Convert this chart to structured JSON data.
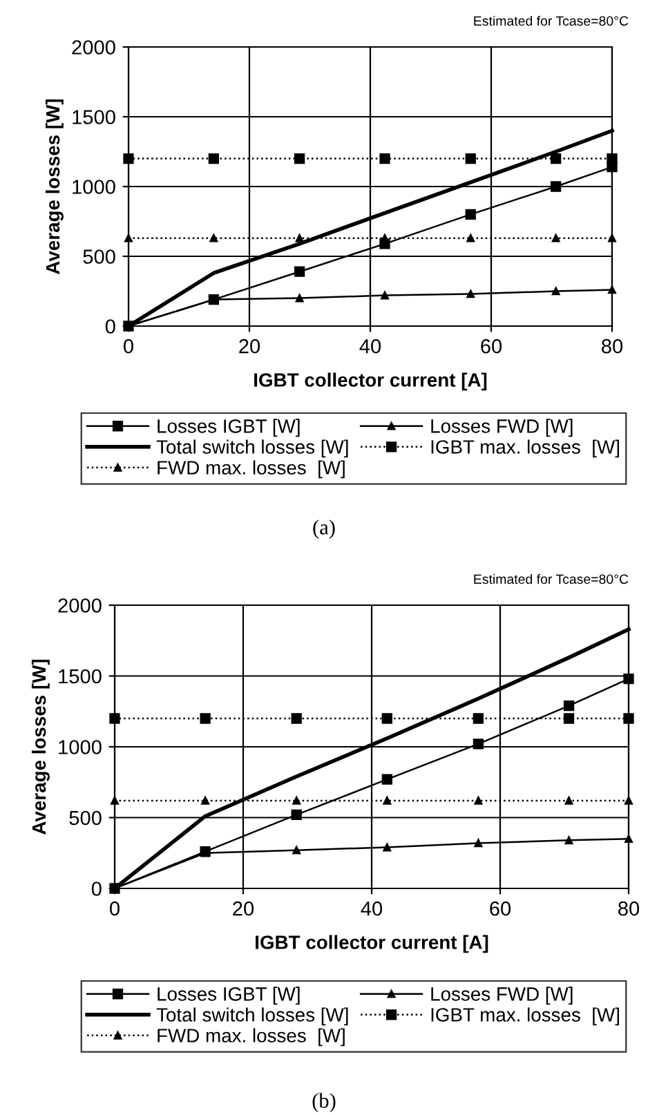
{
  "chart_data": [
    {
      "type": "line",
      "xlabel": "IGBT collector current [A]",
      "ylabel": "Average losses [W]",
      "xlim": [
        0,
        80
      ],
      "ylim": [
        0,
        2000
      ],
      "xticks": [
        0,
        20,
        40,
        60,
        80
      ],
      "yticks": [
        0,
        500,
        1000,
        1500,
        2000
      ],
      "grid": true,
      "legend": "bottom",
      "annotations": [
        "Estimated for Tcase=80°C",
        "(a)"
      ],
      "x": [
        0,
        14.1,
        28.3,
        42.4,
        56.6,
        70.7,
        80
      ],
      "series": [
        {
          "name": "Losses IGBT [W]",
          "color": "#000000",
          "marker": "square",
          "line_style": "solid",
          "values": [
            0,
            190,
            390,
            590,
            800,
            1000,
            1140
          ]
        },
        {
          "name": "Losses FWD [W]",
          "color": "#000000",
          "marker": "triangle",
          "line_style": "solid",
          "values": [
            0,
            190,
            200,
            220,
            230,
            250,
            260
          ]
        },
        {
          "name": "Total switch losses [W]",
          "color": "#000000",
          "marker": "none",
          "line_style": "solid",
          "values": [
            0,
            380,
            590,
            810,
            1030,
            1250,
            1400
          ]
        },
        {
          "name": "IGBT max. losses  [W]",
          "color": "#000000",
          "marker": "square",
          "line_style": "dotted",
          "values": [
            1200,
            1200,
            1200,
            1200,
            1200,
            1200,
            1200
          ]
        },
        {
          "name": "FWD max. losses  [W]",
          "color": "#000000",
          "marker": "triangle",
          "line_style": "dotted",
          "values": [
            630,
            630,
            630,
            630,
            630,
            630,
            630
          ]
        }
      ]
    },
    {
      "type": "line",
      "xlabel": "IGBT collector current [A]",
      "ylabel": "Average losses [W]",
      "xlim": [
        0,
        80
      ],
      "ylim": [
        0,
        2000
      ],
      "xticks": [
        0,
        20,
        40,
        60,
        80
      ],
      "yticks": [
        0,
        500,
        1000,
        1500,
        2000
      ],
      "grid": true,
      "legend": "bottom",
      "annotations": [
        "Estimated for Tcase=80°C",
        "(b)"
      ],
      "x": [
        0,
        14.1,
        28.3,
        42.4,
        56.6,
        70.7,
        80
      ],
      "series": [
        {
          "name": "Losses IGBT [W]",
          "color": "#000000",
          "marker": "square",
          "line_style": "solid",
          "values": [
            0,
            260,
            520,
            770,
            1020,
            1290,
            1480
          ]
        },
        {
          "name": "Losses FWD [W]",
          "color": "#000000",
          "marker": "triangle",
          "line_style": "solid",
          "values": [
            0,
            250,
            270,
            290,
            320,
            340,
            350
          ]
        },
        {
          "name": "Total switch losses [W]",
          "color": "#000000",
          "marker": "none",
          "line_style": "solid",
          "values": [
            0,
            510,
            790,
            1060,
            1340,
            1630,
            1830
          ]
        },
        {
          "name": "IGBT max. losses  [W]",
          "color": "#000000",
          "marker": "square",
          "line_style": "dotted",
          "values": [
            1200,
            1200,
            1200,
            1200,
            1200,
            1200,
            1200
          ]
        },
        {
          "name": "FWD max. losses  [W]",
          "color": "#000000",
          "marker": "triangle",
          "line_style": "dotted",
          "values": [
            620,
            620,
            620,
            620,
            620,
            620,
            620
          ]
        }
      ]
    }
  ]
}
